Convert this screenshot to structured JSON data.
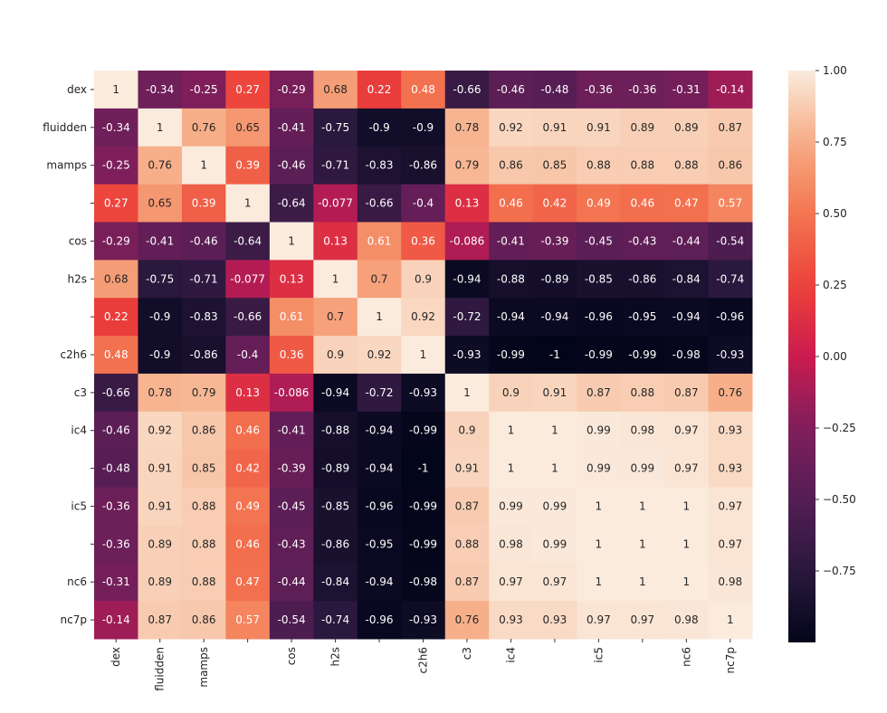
{
  "chart_data": {
    "type": "heatmap",
    "title": "",
    "row_labels": [
      "dex",
      "fluidden",
      "mamps",
      "",
      "cos",
      "h2s",
      "",
      "c2h6",
      "c3",
      "ic4",
      "",
      "ic5",
      "",
      "nc6",
      "nc7p"
    ],
    "col_labels": [
      "dex",
      "fluidden",
      "mamps",
      "",
      "cos",
      "h2s",
      "",
      "c2h6",
      "c3",
      "ic4",
      "",
      "ic5",
      "",
      "nc6",
      "nc7p"
    ],
    "values": [
      [
        1,
        -0.34,
        -0.25,
        0.27,
        -0.29,
        0.68,
        0.22,
        0.48,
        -0.66,
        -0.46,
        -0.48,
        -0.36,
        -0.36,
        -0.31,
        -0.14
      ],
      [
        -0.34,
        1,
        0.76,
        0.65,
        -0.41,
        -0.75,
        -0.9,
        -0.9,
        0.78,
        0.92,
        0.91,
        0.91,
        0.89,
        0.89,
        0.87
      ],
      [
        -0.25,
        0.76,
        1,
        0.39,
        -0.46,
        -0.71,
        -0.83,
        -0.86,
        0.79,
        0.86,
        0.85,
        0.88,
        0.88,
        0.88,
        0.86
      ],
      [
        0.27,
        0.65,
        0.39,
        1,
        -0.64,
        -0.077,
        -0.66,
        -0.4,
        0.13,
        0.46,
        0.42,
        0.49,
        0.46,
        0.47,
        0.57
      ],
      [
        -0.29,
        -0.41,
        -0.46,
        -0.64,
        1,
        0.13,
        0.61,
        0.36,
        -0.086,
        -0.41,
        -0.39,
        -0.45,
        -0.43,
        -0.44,
        -0.54
      ],
      [
        0.68,
        -0.75,
        -0.71,
        -0.077,
        0.13,
        1,
        0.7,
        0.9,
        -0.94,
        -0.88,
        -0.89,
        -0.85,
        -0.86,
        -0.84,
        -0.74
      ],
      [
        0.22,
        -0.9,
        -0.83,
        -0.66,
        0.61,
        0.7,
        1,
        0.92,
        -0.72,
        -0.94,
        -0.94,
        -0.96,
        -0.95,
        -0.94,
        -0.96
      ],
      [
        0.48,
        -0.9,
        -0.86,
        -0.4,
        0.36,
        0.9,
        0.92,
        1,
        -0.93,
        -0.99,
        -1,
        -0.99,
        -0.99,
        -0.98,
        -0.93
      ],
      [
        -0.66,
        0.78,
        0.79,
        0.13,
        -0.086,
        -0.94,
        -0.72,
        -0.93,
        1,
        0.9,
        0.91,
        0.87,
        0.88,
        0.87,
        0.76
      ],
      [
        -0.46,
        0.92,
        0.86,
        0.46,
        -0.41,
        -0.88,
        -0.94,
        -0.99,
        0.9,
        1,
        1,
        0.99,
        0.98,
        0.97,
        0.93
      ],
      [
        -0.48,
        0.91,
        0.85,
        0.42,
        -0.39,
        -0.89,
        -0.94,
        -1,
        0.91,
        1,
        1,
        0.99,
        0.99,
        0.97,
        0.93
      ],
      [
        -0.36,
        0.91,
        0.88,
        0.49,
        -0.45,
        -0.85,
        -0.96,
        -0.99,
        0.87,
        0.99,
        0.99,
        1,
        1,
        1,
        0.97
      ],
      [
        -0.36,
        0.89,
        0.88,
        0.46,
        -0.43,
        -0.86,
        -0.95,
        -0.99,
        0.88,
        0.98,
        0.99,
        1,
        1,
        1,
        0.97
      ],
      [
        -0.31,
        0.89,
        0.88,
        0.47,
        -0.44,
        -0.84,
        -0.94,
        -0.98,
        0.87,
        0.97,
        0.97,
        1,
        1,
        1,
        0.98
      ],
      [
        -0.14,
        0.87,
        0.86,
        0.57,
        -0.54,
        -0.74,
        -0.96,
        -0.93,
        0.76,
        0.93,
        0.93,
        0.97,
        0.97,
        0.98,
        1
      ]
    ],
    "colormap": "rocket",
    "vmin": -1,
    "vmax": 1,
    "colorbar_ticks": [
      "1.00",
      "0.75",
      "0.50",
      "0.25",
      "0.00",
      "−0.25",
      "−0.50",
      "−0.75"
    ],
    "colorbar_tick_values": [
      1,
      0.75,
      0.5,
      0.25,
      0,
      -0.25,
      -0.5,
      -0.75
    ],
    "annotated": true
  }
}
